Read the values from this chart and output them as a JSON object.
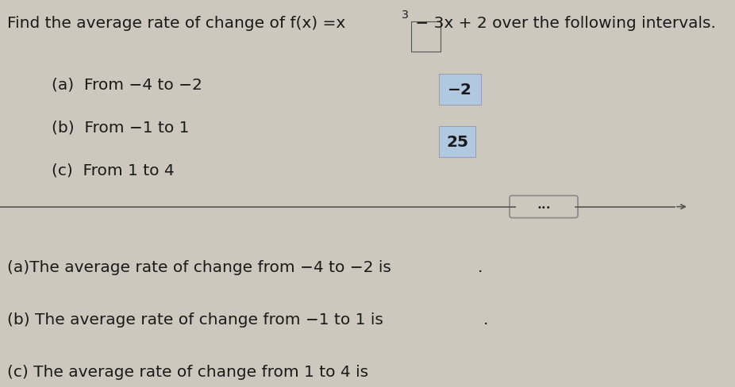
{
  "bg_color": "#ccc8be",
  "text_color": "#1a1a1a",
  "highlight_color_a": "#b0c8e0",
  "highlight_color_b": "#b0c8e0",
  "font_size_title": 14.5,
  "font_size_body": 14.5,
  "font_size_answers": 14.5,
  "title_parts": {
    "before_super": "Find the average rate of change of f(x) =x",
    "superscript": "3",
    "after_super": " − 3x + 2 over the following intervals."
  },
  "list_items": [
    "(a)  From −4 to −2",
    "(b)  From −1 to 1",
    "(c)  From 1 to 4"
  ],
  "answer_a_prefix": "(a)The average rate of change from −4 to −2 is ",
  "answer_a_value": "25",
  "answer_a_suffix": ".",
  "answer_b_prefix": "(b) The average rate of change from −1 to 1 is ",
  "answer_b_value": "−2",
  "answer_b_suffix": ".",
  "answer_c_prefix": "(c) The average rate of change from 1 to 4 is "
}
